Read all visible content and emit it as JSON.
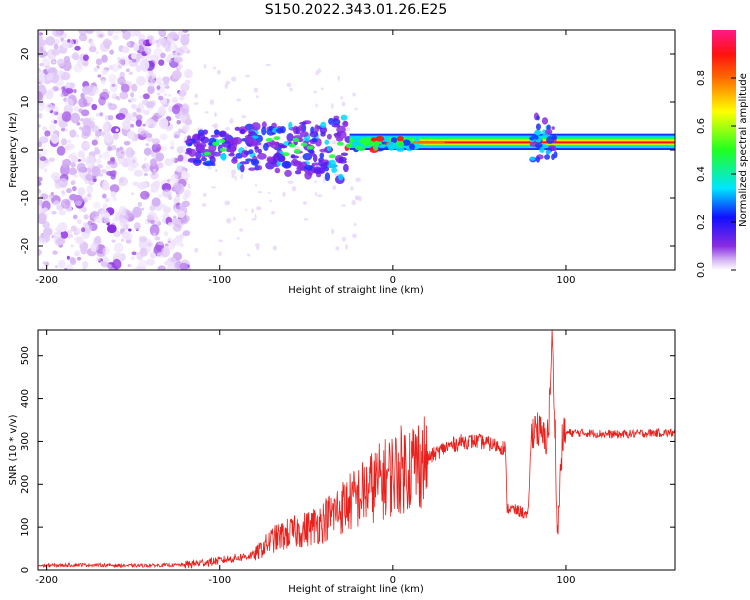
{
  "title": "S150.2022.343.01.26.E25",
  "colors": {
    "snr_line": "#e8201c",
    "frame": "#000000"
  },
  "chart_data": [
    {
      "type": "heatmap",
      "name": "spectrogram",
      "xlabel": "Height of straight line (km)",
      "ylabel": "Frequency (Hz)",
      "xlim": [
        -205,
        163
      ],
      "ylim": [
        -25,
        25
      ],
      "xticks": [
        -200,
        -100,
        0,
        100
      ],
      "yticks": [
        -20,
        -10,
        0,
        10,
        20
      ],
      "grid": false,
      "colorbar": {
        "label": "Normalized spectral amplitude",
        "range": [
          0,
          1
        ],
        "ticks": [
          "0.0",
          "0.2",
          "0.4",
          "0.6",
          "0.8"
        ],
        "colormap": "rainbow (white → violet → blue → cyan → green → yellow → red → magenta)"
      },
      "features": [
        {
          "height_range_km": [
            -205,
            -118
          ],
          "frequency_hz": [
            -25,
            25
          ],
          "amplitude": "0.05-0.25",
          "pattern": "dense scattered noise"
        },
        {
          "height_range_km": [
            -118,
            -25
          ],
          "frequency_hz": [
            -5,
            5
          ],
          "amplitude": "0.2-0.45",
          "pattern": "broken blobs near 0 Hz"
        },
        {
          "height_range_km": [
            -25,
            163
          ],
          "frequency_hz": [
            1,
            2.5
          ],
          "amplitude": "0.8-1.0",
          "pattern": "continuous narrow band"
        },
        {
          "height_range_km": [
            82,
            92
          ],
          "frequency_hz": [
            -2,
            8
          ],
          "amplitude": "0.3-0.7",
          "pattern": "disturbance"
        }
      ]
    },
    {
      "type": "line",
      "name": "snr",
      "xlabel": "Height of straight line (km)",
      "ylabel": "SNR (10 * v/v)",
      "xlim": [
        -205,
        163
      ],
      "ylim": [
        0,
        560
      ],
      "xticks": [
        -200,
        -100,
        0,
        100
      ],
      "yticks": [
        0,
        100,
        200,
        300,
        400,
        500
      ],
      "grid": false,
      "series": [
        {
          "x": [
            -205,
            -180,
            -150,
            -120,
            -100,
            -80,
            -70,
            -60,
            -50,
            -40,
            -30,
            -20,
            -10,
            0,
            10,
            20,
            30,
            40,
            50,
            60,
            65,
            66,
            70,
            75,
            78,
            80,
            82,
            85,
            88,
            90,
            92,
            94,
            95,
            96,
            98,
            100,
            110,
            120,
            130,
            140,
            150,
            163
          ],
          "y": [
            10,
            12,
            10,
            12,
            22,
            35,
            70,
            85,
            95,
            115,
            145,
            170,
            200,
            225,
            245,
            260,
            285,
            300,
            300,
            290,
            285,
            145,
            140,
            135,
            120,
            310,
            340,
            320,
            300,
            330,
            540,
            300,
            60,
            160,
            310,
            320,
            320,
            318,
            316,
            318,
            320,
            320
          ]
        }
      ]
    }
  ]
}
